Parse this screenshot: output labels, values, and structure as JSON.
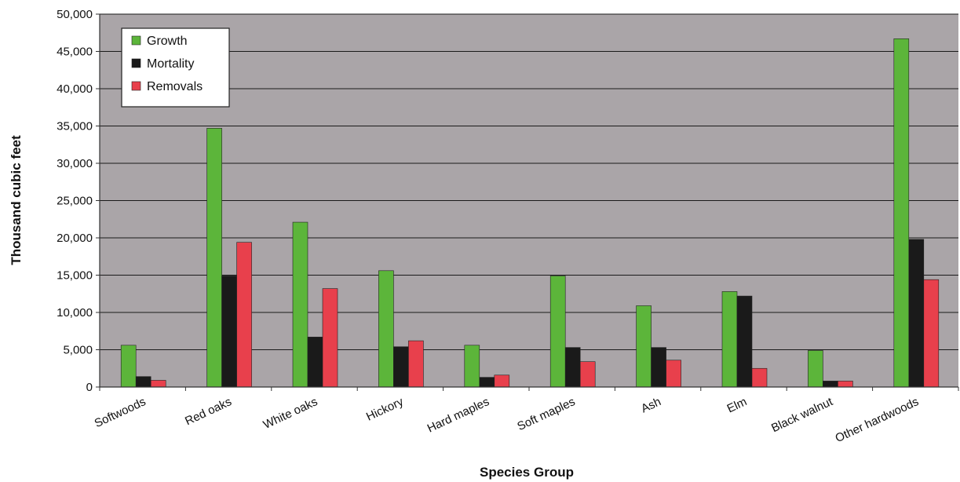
{
  "chart_data": {
    "type": "bar",
    "title": "",
    "xlabel": "Species Group",
    "ylabel": "Thousand cubic feet",
    "ylim": [
      0,
      50000
    ],
    "yticks": [
      0,
      5000,
      10000,
      15000,
      20000,
      25000,
      30000,
      35000,
      40000,
      45000,
      50000
    ],
    "ytick_labels": [
      "0",
      "5,000",
      "10,000",
      "15,000",
      "20,000",
      "25,000",
      "30,000",
      "35,000",
      "40,000",
      "45,000",
      "50,000"
    ],
    "grid": true,
    "legend_position": "top-left",
    "categories": [
      "Softwoods",
      "Red oaks",
      "White oaks",
      "Hickory",
      "Hard maples",
      "Soft maples",
      "Ash",
      "Elm",
      "Black walnut",
      "Other hardwoods"
    ],
    "series": [
      {
        "name": "Growth",
        "color": "#5cb53a",
        "values": [
          5600,
          34700,
          22100,
          15600,
          5600,
          14900,
          10900,
          12800,
          4900,
          46700
        ]
      },
      {
        "name": "Mortality",
        "color": "#1a1a1a",
        "values": [
          1400,
          14900,
          6700,
          5400,
          1300,
          5300,
          5300,
          12200,
          800,
          19800
        ]
      },
      {
        "name": "Removals",
        "color": "#e8404c",
        "values": [
          900,
          19400,
          13200,
          6200,
          1600,
          3400,
          3600,
          2500,
          800,
          14400
        ]
      }
    ]
  }
}
